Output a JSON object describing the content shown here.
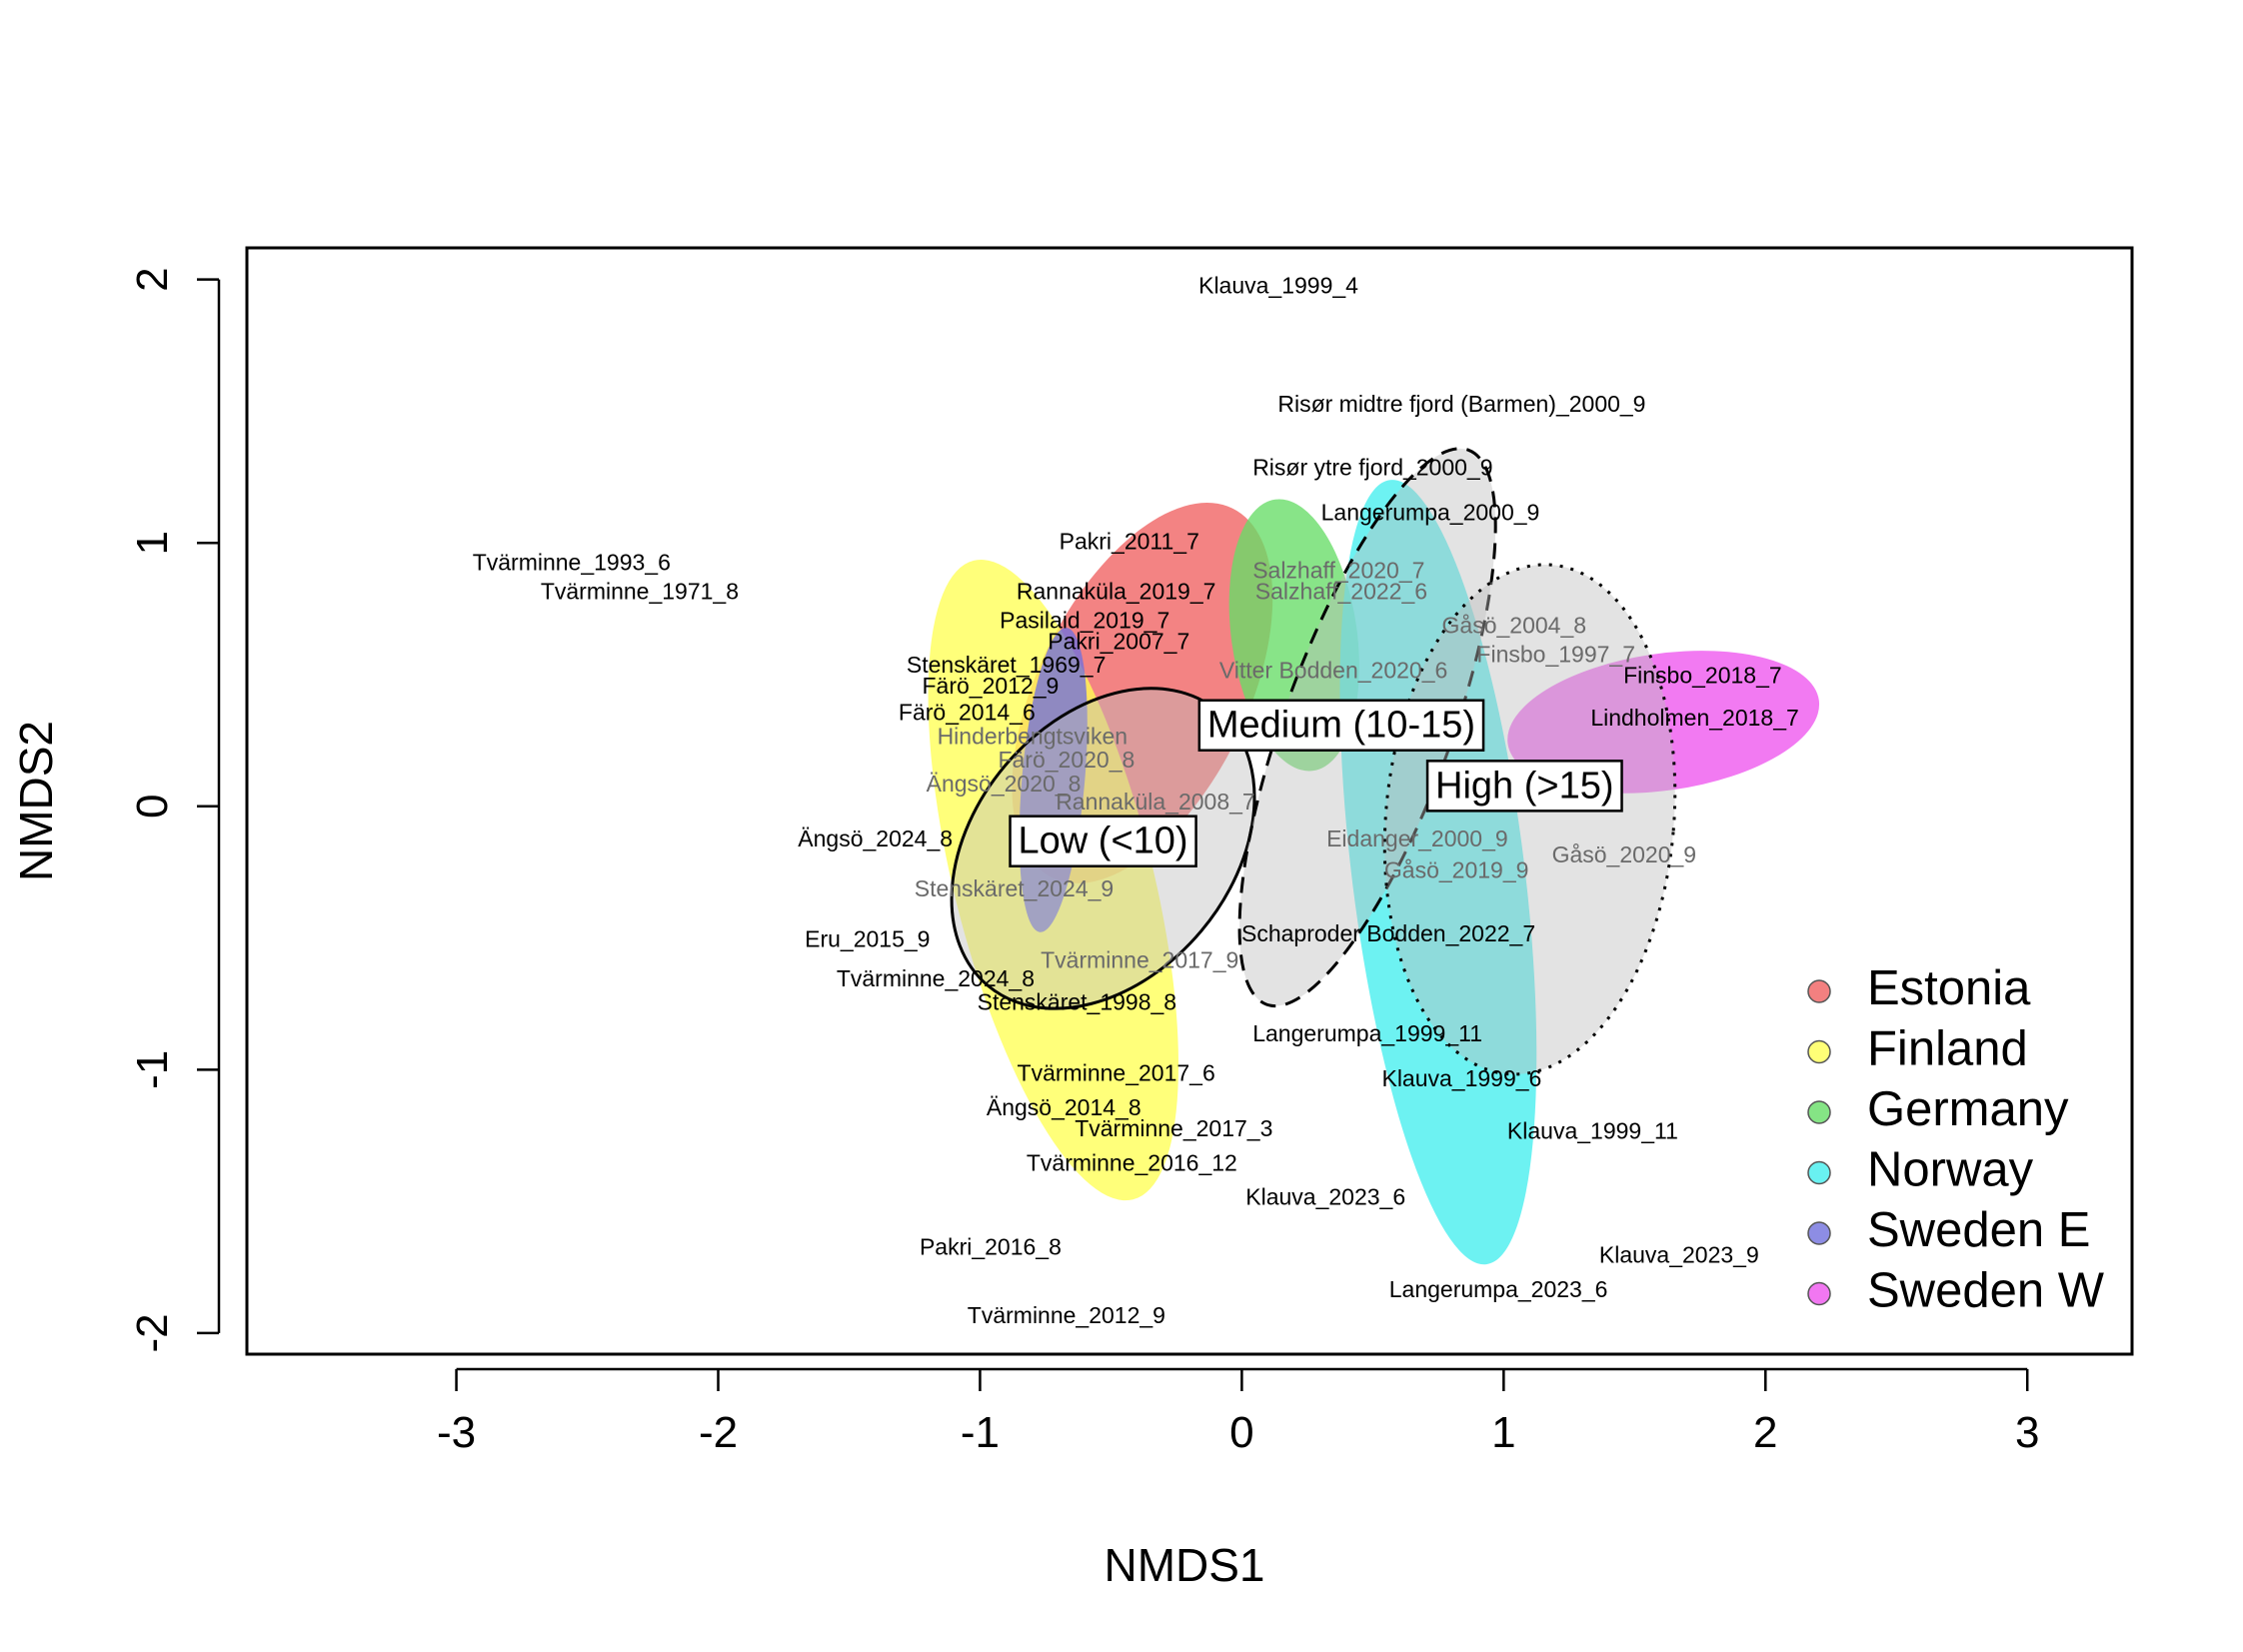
{
  "chart_data": {
    "type": "scatter",
    "title": "",
    "xlabel": "NMDS1",
    "ylabel": "NMDS2",
    "xlim": [
      -3.8,
      3.4
    ],
    "ylim": [
      -2.08,
      2.12
    ],
    "xticks": [
      "-3",
      "-2",
      "-1",
      "0",
      "1",
      "2",
      "3"
    ],
    "xtick_values": [
      -3,
      -2,
      -1,
      0,
      1,
      2,
      3
    ],
    "yticks": [
      "-2",
      "-1",
      "0",
      "1",
      "2"
    ],
    "ytick_values": [
      -2,
      -1,
      0,
      1,
      2
    ],
    "grid": false,
    "legend": {
      "position": "bottom-right",
      "entries": [
        {
          "name": "Estonia",
          "color": "#f06060"
        },
        {
          "name": "Finland",
          "color": "#ffff55"
        },
        {
          "name": "Germany",
          "color": "#66dd66"
        },
        {
          "name": "Norway",
          "color": "#44eeee"
        },
        {
          "name": "Sweden E",
          "color": "#7070dd"
        },
        {
          "name": "Sweden W",
          "color": "#ee55ee"
        }
      ]
    },
    "country_ellipses": [
      {
        "country": "Estonia",
        "cx": -0.38,
        "cy": 0.43,
        "rx": 0.4,
        "ry": 0.78,
        "angle": 26,
        "color": "#f06060"
      },
      {
        "country": "Finland",
        "cx": -0.72,
        "cy": -0.28,
        "rx": 0.38,
        "ry": 1.25,
        "angle": -14,
        "color": "#ffff55"
      },
      {
        "country": "Germany",
        "cx": 0.2,
        "cy": 0.65,
        "rx": 0.24,
        "ry": 0.52,
        "angle": -8,
        "color": "#66dd66"
      },
      {
        "country": "Norway",
        "cx": 0.75,
        "cy": -0.25,
        "rx": 0.33,
        "ry": 1.5,
        "angle": -7,
        "color": "#44eeee"
      },
      {
        "country": "Sweden E",
        "cx": -0.72,
        "cy": 0.1,
        "rx": 0.12,
        "ry": 0.58,
        "angle": 5,
        "color": "#7070dd"
      },
      {
        "country": "Sweden W",
        "cx": 1.61,
        "cy": 0.32,
        "rx": 0.6,
        "ry": 0.26,
        "angle": -8,
        "color": "#ee55ee"
      }
    ],
    "groups": [
      {
        "label": "Low (<10)",
        "cx": -0.53,
        "cy": -0.16,
        "rx": 0.49,
        "ry": 0.68,
        "angle": 40,
        "line": "solid",
        "label_x": -0.53,
        "label_y": -0.14
      },
      {
        "label": "Medium (10-15)",
        "cx": 0.48,
        "cy": 0.3,
        "rx": 0.32,
        "ry": 1.12,
        "angle": 20,
        "line": "dashed",
        "label_x": 0.38,
        "label_y": 0.3
      },
      {
        "label": "High (>15)",
        "cx": 1.1,
        "cy": -0.05,
        "rx": 0.55,
        "ry": 0.97,
        "angle": 5,
        "line": "dotted",
        "label_x": 1.08,
        "label_y": 0.07
      }
    ],
    "points": [
      {
        "label": "Klauva_1999_4",
        "x": 0.14,
        "y": 1.97,
        "faded": false
      },
      {
        "label": "Risør midtre fjord (Barmen)_2000_9",
        "x": 0.84,
        "y": 1.52,
        "faded": false
      },
      {
        "label": "Risør ytre fjord_2000_9",
        "x": 0.5,
        "y": 1.28,
        "faded": false
      },
      {
        "label": "Langerumpa_2000_9",
        "x": 0.72,
        "y": 1.11,
        "faded": false
      },
      {
        "label": "Pakri_2011_7",
        "x": -0.43,
        "y": 1.0,
        "faded": false
      },
      {
        "label": "Tvärminne_1993_6",
        "x": -2.56,
        "y": 0.92,
        "faded": false
      },
      {
        "label": "Tvärminne_1971_8",
        "x": -2.3,
        "y": 0.81,
        "faded": false
      },
      {
        "label": "Rannaküla_2019_7",
        "x": -0.48,
        "y": 0.81,
        "faded": false
      },
      {
        "label": "Salzhaff_2020_7",
        "x": 0.37,
        "y": 0.89,
        "faded": true
      },
      {
        "label": "Salzhaff_2022_6",
        "x": 0.38,
        "y": 0.81,
        "faded": true
      },
      {
        "label": "Pasilaid_2019_7",
        "x": -0.6,
        "y": 0.7,
        "faded": false
      },
      {
        "label": "Pakri_2007_7",
        "x": -0.47,
        "y": 0.62,
        "faded": false
      },
      {
        "label": "Gåsö_2004_8",
        "x": 1.04,
        "y": 0.68,
        "faded": true
      },
      {
        "label": "Finsbo_1997_7",
        "x": 1.2,
        "y": 0.57,
        "faded": true
      },
      {
        "label": "Finsbo_2018_7",
        "x": 1.76,
        "y": 0.49,
        "faded": false
      },
      {
        "label": "Stenskäret_1969_7",
        "x": -0.9,
        "y": 0.53,
        "faded": false
      },
      {
        "label": "Vitter Bodden_2020_6",
        "x": 0.35,
        "y": 0.51,
        "faded": true
      },
      {
        "label": "Färö_2012_9",
        "x": -0.96,
        "y": 0.45,
        "faded": false
      },
      {
        "label": "Färö_2014_6",
        "x": -1.05,
        "y": 0.35,
        "faded": false
      },
      {
        "label": "Lindholmen_2018_7",
        "x": 1.73,
        "y": 0.33,
        "faded": false
      },
      {
        "label": "Hinderbengtsviken",
        "x": -0.8,
        "y": 0.26,
        "faded": true
      },
      {
        "label": "Färö_2020_8",
        "x": -0.67,
        "y": 0.17,
        "faded": true
      },
      {
        "label": "Ängsö_2020_8",
        "x": -0.91,
        "y": 0.08,
        "faded": true
      },
      {
        "label": "Rannaküla_2008_7",
        "x": -0.33,
        "y": 0.01,
        "faded": true
      },
      {
        "label": "Ängsö_2024_8",
        "x": -1.4,
        "y": -0.13,
        "faded": false
      },
      {
        "label": "Eidanger_2000_9",
        "x": 0.67,
        "y": -0.13,
        "faded": true
      },
      {
        "label": "Gåsö_2019_9",
        "x": 0.82,
        "y": -0.25,
        "faded": true
      },
      {
        "label": "Gåsö_2020_9",
        "x": 1.46,
        "y": -0.19,
        "faded": true
      },
      {
        "label": "Stenskäret_2024_9",
        "x": -0.87,
        "y": -0.32,
        "faded": true
      },
      {
        "label": "Eru_2015_9",
        "x": -1.43,
        "y": -0.51,
        "faded": false
      },
      {
        "label": "Schaproder Bodden_2022_7",
        "x": 0.56,
        "y": -0.49,
        "faded": false
      },
      {
        "label": "Tvärminne_2017_9",
        "x": -0.39,
        "y": -0.59,
        "faded": true
      },
      {
        "label": "Tvärminne_2024_8",
        "x": -1.17,
        "y": -0.66,
        "faded": false
      },
      {
        "label": "Stenskäret_1998_8",
        "x": -0.63,
        "y": -0.75,
        "faded": false
      },
      {
        "label": "Langerumpa_1999_11",
        "x": 0.48,
        "y": -0.87,
        "faded": false
      },
      {
        "label": "Tvärminne_2017_6",
        "x": -0.48,
        "y": -1.02,
        "faded": false
      },
      {
        "label": "Klauva_1999_6",
        "x": 0.84,
        "y": -1.04,
        "faded": false
      },
      {
        "label": "Ängsö_2014_8",
        "x": -0.68,
        "y": -1.15,
        "faded": false
      },
      {
        "label": "Tvärminne_2017_3",
        "x": -0.26,
        "y": -1.23,
        "faded": false
      },
      {
        "label": "Klauva_1999_11",
        "x": 1.34,
        "y": -1.24,
        "faded": false
      },
      {
        "label": "Tvärminne_2016_12",
        "x": -0.42,
        "y": -1.36,
        "faded": false
      },
      {
        "label": "Klauva_2023_6",
        "x": 0.32,
        "y": -1.49,
        "faded": false
      },
      {
        "label": "Pakri_2016_8",
        "x": -0.96,
        "y": -1.68,
        "faded": false
      },
      {
        "label": "Klauva_2023_9",
        "x": 1.67,
        "y": -1.71,
        "faded": false
      },
      {
        "label": "Langerumpa_2023_6",
        "x": 0.98,
        "y": -1.84,
        "faded": false
      },
      {
        "label": "Tvärminne_2012_9",
        "x": -0.67,
        "y": -1.94,
        "faded": false
      }
    ]
  }
}
